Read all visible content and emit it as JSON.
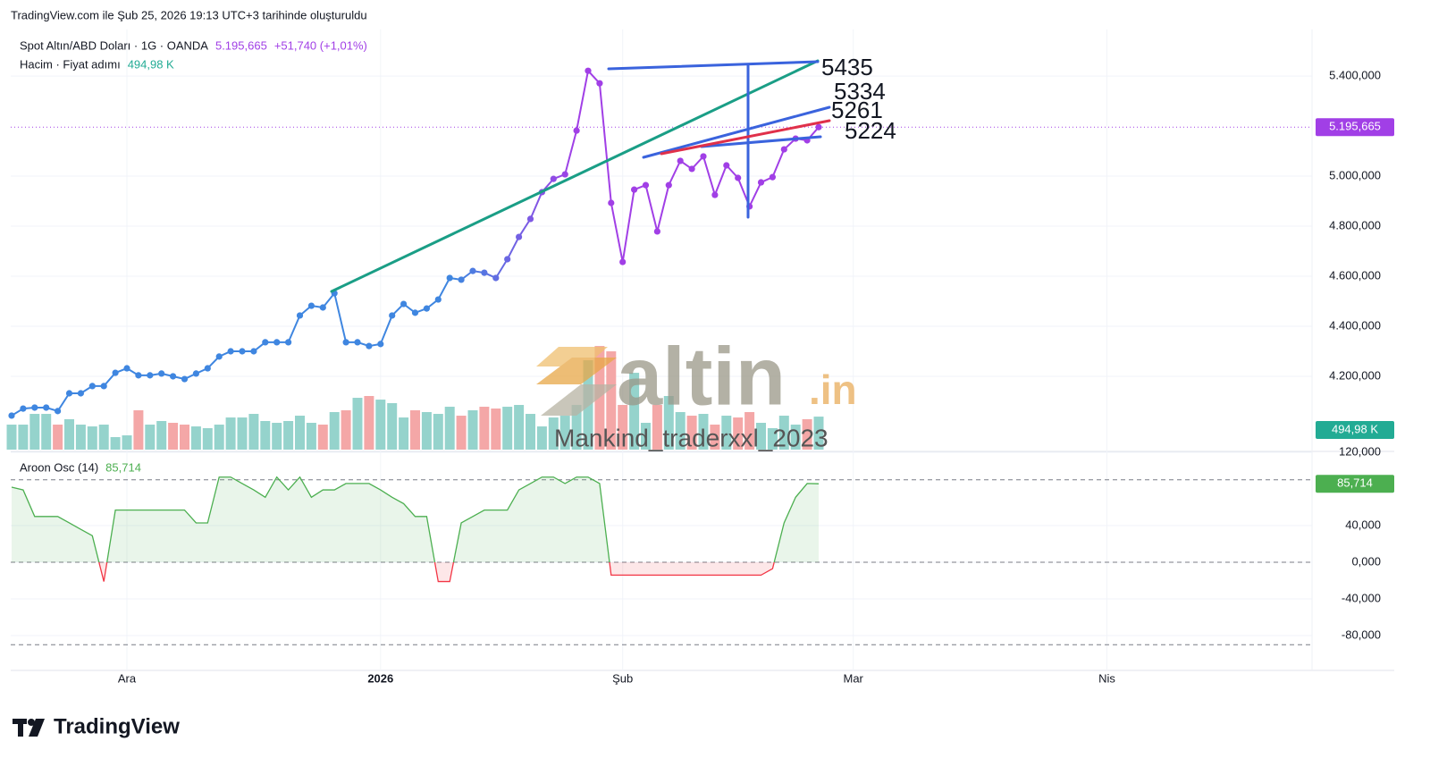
{
  "header": {
    "caption": "TradingView.com ile Şub 25, 2026 19:13 UTC+3 tarihinde oluşturuldu"
  },
  "chart_data": {
    "type": "line",
    "categories": [
      null,
      null,
      null,
      null,
      null,
      null,
      null,
      null,
      null,
      null,
      "Ara",
      null,
      null,
      null,
      null,
      null,
      null,
      null,
      null,
      null,
      null,
      null,
      null,
      null,
      null,
      null,
      null,
      null,
      null,
      null,
      null,
      null,
      "2026",
      null,
      null,
      null,
      null,
      null,
      null,
      null,
      null,
      null,
      null,
      null,
      null,
      null,
      null,
      null,
      null,
      null,
      null,
      null,
      null,
      "Şub",
      null,
      null,
      null,
      null,
      null,
      null,
      null,
      null,
      null,
      null,
      null,
      null,
      null,
      null,
      null,
      null,
      null,
      null,
      null,
      "Mar",
      null,
      null,
      null,
      null,
      null,
      null,
      null,
      null,
      null,
      null,
      null,
      null,
      null,
      null,
      null,
      null,
      null,
      null,
      null,
      null,
      null,
      "Nis",
      null,
      null,
      null,
      null,
      null,
      null,
      null,
      null,
      null,
      null,
      null,
      null,
      null,
      null,
      null,
      null,
      null
    ],
    "series": [
      {
        "name": "Spot Altın/ABD Doları · 1G · OANDA",
        "colors": [
          "#3f86e0",
          "#a13fe6"
        ],
        "last_label": "5.195,665",
        "change": "+51,740 (+1,01%)",
        "values": [
          4043,
          4071,
          4075,
          4075,
          4061,
          4132,
          4132,
          4161,
          4161,
          4214,
          4232,
          4204,
          4204,
          4211,
          4200,
          4189,
          4211,
          4232,
          4279,
          4300,
          4300,
          4300,
          4336,
          4336,
          4336,
          4443,
          4482,
          4475,
          4532,
          4336,
          4336,
          4321,
          4329,
          4443,
          4489,
          4454,
          4471,
          4507,
          4593,
          4586,
          4621,
          4614,
          4593,
          4668,
          4757,
          4829,
          4936,
          4989,
          5007,
          5182,
          5421,
          5371,
          4893,
          4657,
          4946,
          4964,
          4779,
          4964,
          5061,
          5029,
          5079,
          4925,
          5043,
          4993,
          4879,
          4975,
          4996,
          5107,
          5150,
          5143,
          5195.665,
          null,
          null,
          null,
          null,
          null,
          null,
          null,
          null,
          null,
          null,
          null,
          null,
          null,
          null,
          null,
          null,
          null,
          null,
          null,
          null,
          null,
          null,
          null,
          null,
          null,
          null,
          null,
          null,
          null,
          null,
          null,
          null,
          null,
          null,
          null,
          null,
          null,
          null,
          null,
          null,
          null,
          null
        ]
      },
      {
        "name": "Hacim · Fiyat adımı",
        "type": "bar",
        "axis": "y2",
        "up_color": "#95d3cc",
        "down_color": "#f4a7a7",
        "last_label": "494,98 K",
        "values": [
          375,
          375,
          536,
          536,
          375,
          456,
          375,
          348,
          375,
          188,
          214,
          590,
          375,
          429,
          402,
          375,
          348,
          322,
          375,
          482,
          482,
          536,
          429,
          402,
          429,
          509,
          402,
          375,
          563,
          590,
          777,
          804,
          750,
          697,
          482,
          590,
          563,
          536,
          643,
          509,
          590,
          643,
          616,
          643,
          670,
          536,
          348,
          482,
          509,
          670,
          1340,
          1554,
          1474,
          670,
          1152,
          402,
          670,
          804,
          563,
          509,
          536,
          375,
          509,
          482,
          563,
          402,
          322,
          509,
          375,
          456,
          494.98,
          null,
          null,
          null,
          null,
          null,
          null,
          null,
          null,
          null,
          null,
          null,
          null,
          null,
          null,
          null,
          null,
          null,
          null,
          null,
          null,
          null,
          null,
          null,
          null,
          null,
          null,
          null,
          null,
          null,
          null,
          null,
          null,
          null,
          null,
          null,
          null,
          null,
          null,
          null,
          null,
          null,
          null
        ]
      }
    ],
    "ylim": [
      3907,
      5586
    ],
    "yticks": [
      {
        "value": 4200,
        "label": "4.200,000"
      },
      {
        "value": 4400,
        "label": "4.400,000"
      },
      {
        "value": 4600,
        "label": "4.600,000"
      },
      {
        "value": 4800,
        "label": "4.800,000"
      },
      {
        "value": 5000,
        "label": "5.000,000"
      },
      {
        "value": 5400,
        "label": "5.400,000"
      }
    ],
    "y2lim": [
      0,
      6300
    ],
    "grid": true,
    "annotations": [
      "5435",
      "5334",
      "5261",
      "5224"
    ],
    "indicator": {
      "type": "line",
      "name": "Aroon Osc (14)",
      "last_label": "85,714",
      "up_color": "#4caf50",
      "down_color": "#f23645",
      "values": [
        82,
        79,
        50,
        50,
        50,
        43,
        36,
        29,
        -21,
        57,
        57,
        57,
        57,
        57,
        57,
        57,
        43,
        43,
        93,
        93,
        86,
        79,
        71,
        93,
        79,
        93,
        71,
        79,
        79,
        86,
        86,
        86,
        79,
        71,
        64,
        50,
        50,
        -21,
        -21,
        43,
        50,
        57,
        57,
        57,
        79,
        86,
        93,
        93,
        86,
        93,
        93,
        86,
        -14,
        -14,
        -14,
        -14,
        -14,
        -14,
        -14,
        -14,
        -14,
        -14,
        -14,
        -14,
        -14,
        -14,
        -7,
        43,
        71,
        86,
        85.714,
        null,
        null,
        null,
        null,
        null,
        null,
        null,
        null,
        null,
        null,
        null,
        null,
        null,
        null,
        null,
        null,
        null,
        null,
        null,
        null,
        null,
        null,
        null,
        null,
        null,
        null,
        null,
        null,
        null,
        null,
        null,
        null,
        null,
        null,
        null,
        null,
        null,
        null,
        null,
        null,
        null,
        null
      ],
      "ylim": [
        -118,
        122
      ],
      "yticks": [
        {
          "value": 120,
          "label": "120,000"
        },
        {
          "value": 40,
          "label": "40,000"
        },
        {
          "value": 0,
          "label": "0,000"
        },
        {
          "value": -40,
          "label": "-40,000"
        },
        {
          "value": -80,
          "label": "-80,000"
        }
      ],
      "levels": [
        90,
        0,
        -90
      ]
    }
  },
  "watermark": {
    "brand": "altin",
    "domain": ".in",
    "user": "Mankind_traderxxl_2023"
  },
  "footer": {
    "brand": "TradingView"
  }
}
